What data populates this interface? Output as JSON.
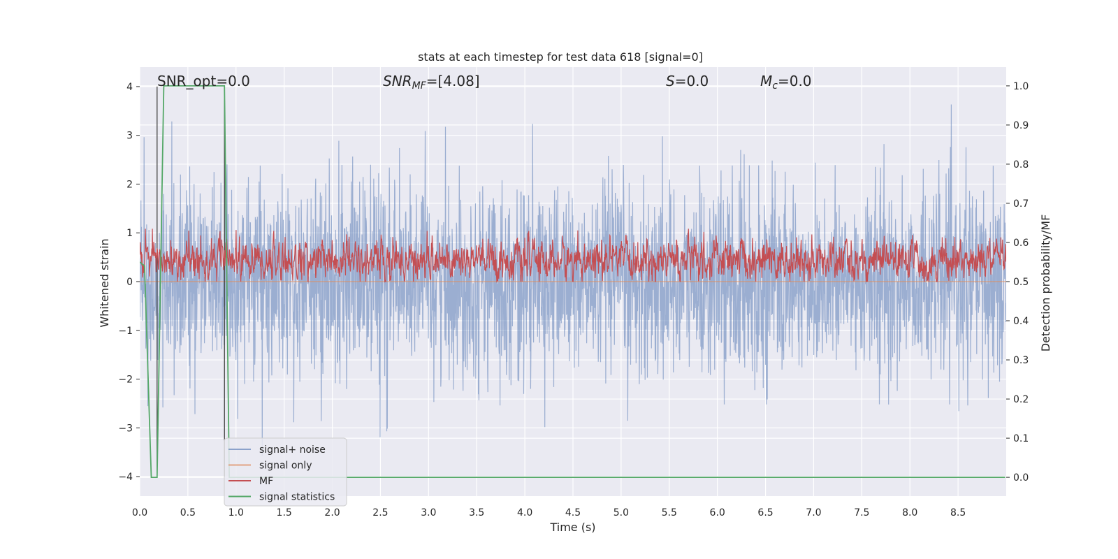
{
  "chart_data": {
    "type": "line",
    "title": "stats at each timestep for test data 618 [signal=0]",
    "xlabel": "Time (s)",
    "ylabel": "Whitened strain",
    "ylabel_right": "Detection probability/MF",
    "xlim": [
      0.0,
      9.0
    ],
    "ylim": [
      -4.4,
      4.4
    ],
    "ylim_right": [
      -0.048,
      1.048
    ],
    "xticks": [
      "0.0",
      "0.5",
      "1.0",
      "1.5",
      "2.0",
      "2.5",
      "3.0",
      "3.5",
      "4.0",
      "4.5",
      "5.0",
      "5.5",
      "6.0",
      "6.5",
      "7.0",
      "7.5",
      "8.0",
      "8.5"
    ],
    "xtick_values": [
      0.0,
      0.5,
      1.0,
      1.5,
      2.0,
      2.5,
      3.0,
      3.5,
      4.0,
      4.5,
      5.0,
      5.5,
      6.0,
      6.5,
      7.0,
      7.5,
      8.0,
      8.5
    ],
    "yticks": [
      "−4",
      "−3",
      "−2",
      "−1",
      "0",
      "1",
      "2",
      "3",
      "4"
    ],
    "ytick_values": [
      -4,
      -3,
      -2,
      -1,
      0,
      1,
      2,
      3,
      4
    ],
    "yticks_right": [
      "0.0",
      "0.1",
      "0.2",
      "0.3",
      "0.4",
      "0.5",
      "0.6",
      "0.7",
      "0.8",
      "0.9",
      "1.0"
    ],
    "ytick_right_values": [
      0.0,
      0.1,
      0.2,
      0.3,
      0.4,
      0.5,
      0.6,
      0.7,
      0.8,
      0.9,
      1.0
    ],
    "grid": true,
    "legend_position": "lower-left",
    "annotations": [
      {
        "label": "SNR_opt=0.0",
        "x": 0.2,
        "y": 4.08
      },
      {
        "label": "SNR_MF=[4.08]",
        "x": 2.6,
        "y": 4.08
      },
      {
        "label": "S=0.0",
        "x": 5.6,
        "y": 4.08
      },
      {
        "label": "M_c=0.0",
        "x": 6.6,
        "y": 4.08
      }
    ],
    "vertical_lines": [
      0.18,
      0.88
    ],
    "series": [
      {
        "name": "signal+ noise",
        "color": "#4c72b0",
        "axis": "left",
        "description": "white noise, std ≈ 0.95, range ≈ [-4, 4]"
      },
      {
        "name": "signal only",
        "color": "#dd8452",
        "axis": "left",
        "values_constant": 0.0
      },
      {
        "name": "MF",
        "color": "#c44e52",
        "axis": "right",
        "description": "matched filter output ≈ 0.5–0.62, peaks ≈ 0.63"
      },
      {
        "name": "signal statistics",
        "color": "#55a868",
        "axis": "right",
        "points": [
          [
            0.0,
            0.55
          ],
          [
            0.05,
            0.54
          ],
          [
            0.12,
            0.0
          ],
          [
            0.18,
            0.0
          ],
          [
            0.25,
            1.0
          ],
          [
            0.88,
            1.0
          ],
          [
            0.93,
            0.0
          ],
          [
            8.99,
            0.0
          ]
        ]
      }
    ]
  }
}
